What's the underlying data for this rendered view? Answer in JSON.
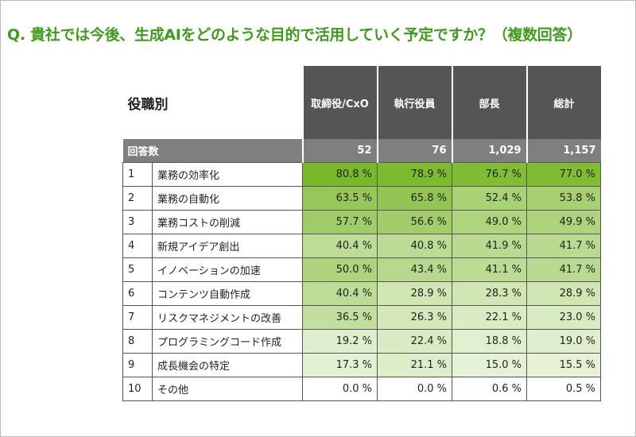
{
  "title": "Q. 貴社では今後、生成AIをどのような目的で活用していく予定ですか？（複数回答）",
  "table": {
    "corner": "役職別",
    "columns": [
      "取締役/CxO",
      "執行役員",
      "部長",
      "総計"
    ],
    "count_row": {
      "label": "回答数",
      "values": [
        "52",
        "76",
        "1,029",
        "1,157"
      ]
    },
    "rows": [
      {
        "rank": "1",
        "label": "業務の効率化",
        "values": [
          "80.8 %",
          "78.9 %",
          "76.7 %",
          "77.0 %"
        ]
      },
      {
        "rank": "2",
        "label": "業務の自動化",
        "values": [
          "63.5 %",
          "65.8 %",
          "52.4 %",
          "53.8 %"
        ]
      },
      {
        "rank": "3",
        "label": "業務コストの削減",
        "values": [
          "57.7 %",
          "56.6 %",
          "49.0 %",
          "49.9 %"
        ]
      },
      {
        "rank": "4",
        "label": "新規アイデア創出",
        "values": [
          "40.4 %",
          "40.8 %",
          "41.9 %",
          "41.7 %"
        ]
      },
      {
        "rank": "5",
        "label": "イノベーションの加速",
        "values": [
          "50.0 %",
          "43.4 %",
          "41.1 %",
          "41.7 %"
        ]
      },
      {
        "rank": "6",
        "label": "コンテンツ自動作成",
        "values": [
          "40.4 %",
          "28.9 %",
          "28.3 %",
          "28.9 %"
        ]
      },
      {
        "rank": "7",
        "label": "リスクマネジメントの改善",
        "values": [
          "36.5 %",
          "26.3 %",
          "22.1 %",
          "23.0 %"
        ]
      },
      {
        "rank": "8",
        "label": "プログラミングコード作成",
        "values": [
          "19.2 %",
          "22.4 %",
          "18.8 %",
          "19.0 %"
        ]
      },
      {
        "rank": "9",
        "label": "成長機会の特定",
        "values": [
          "17.3 %",
          "21.1 %",
          "15.0 %",
          "15.5 %"
        ]
      },
      {
        "rank": "10",
        "label": "その他",
        "values": [
          "0.0 %",
          "0.0 %",
          "0.6 %",
          "0.5 %"
        ]
      }
    ]
  }
}
